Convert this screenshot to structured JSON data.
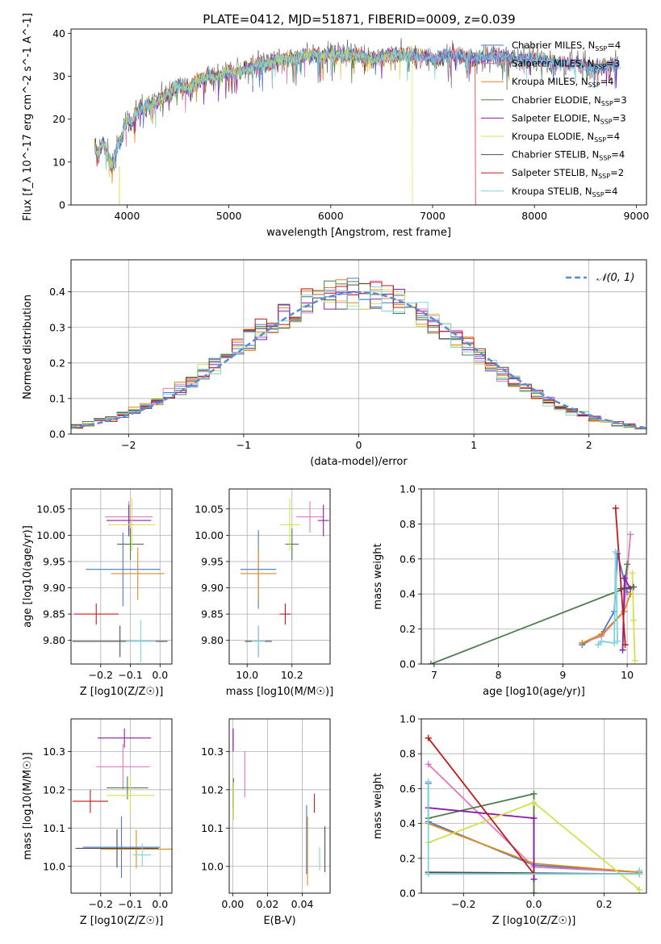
{
  "figure": {
    "title": "PLATE=0412, MJD=51871, FIBERID=0009, z=0.039",
    "series_colors": {
      "chabrier_miles": "#4878cf",
      "salpeter_miles": "#e377c2",
      "kroupa_miles": "#d98c1c",
      "chabrier_elodie": "#4c7f4c",
      "salpeter_elodie": "#8c1ca8",
      "kroupa_elodie": "#d4e04c",
      "chabrier_stelib": "#4d4d4d",
      "salpeter_stelib": "#c41a1a",
      "kroupa_stelib": "#7fd3de"
    }
  },
  "chart_data": [
    {
      "type": "line",
      "id": "spectrum",
      "title": "PLATE=0412, MJD=51871, FIBERID=0009, z=0.039",
      "xlabel": "wavelength [Angstrom, rest frame]",
      "ylabel": "Flux [f_λ 10^-17 erg cm^-2 s^-1 A^-1]",
      "xlim": [
        3450,
        9100
      ],
      "ylim": [
        0,
        41
      ],
      "xticks": [
        4000,
        5000,
        6000,
        7000,
        8000,
        9000
      ],
      "yticks": [
        0,
        10,
        20,
        30,
        40
      ],
      "grid": false,
      "legend_position": "top-right",
      "spectrum_x": [
        3680,
        3720,
        3760,
        3800,
        3850,
        3900,
        3950,
        4000,
        4050,
        4100,
        4200,
        4300,
        4400,
        4500,
        4600,
        4700,
        4800,
        4900,
        5000,
        5100,
        5200,
        5300,
        5400,
        5500,
        5600,
        5800,
        6000,
        6200,
        6400,
        6600,
        6800,
        7000,
        7200,
        7400,
        7600,
        7800,
        8000,
        8200,
        8400,
        8600,
        8800
      ],
      "spectrum_y": [
        14,
        11,
        15,
        12,
        9,
        13,
        16,
        20,
        19,
        22,
        23,
        24,
        26,
        28,
        27,
        29,
        30,
        30,
        31,
        31,
        32,
        33,
        33,
        34,
        34,
        35,
        35,
        35,
        34,
        35,
        35,
        34,
        35,
        34,
        35,
        34,
        34,
        33,
        33,
        32,
        33
      ],
      "drops": [
        {
          "series": "Kroupa ELODIE",
          "x": 3920,
          "direction": "left"
        },
        {
          "series": "Kroupa ELODIE",
          "x": 6800,
          "direction": "right"
        },
        {
          "series": "Salpeter STELIB",
          "x": 7420,
          "direction": "right"
        }
      ],
      "legend": [
        {
          "label": "Chabrier MILES, N",
          "sub": "SSP",
          "tail": "=4",
          "color_key": "chabrier_miles"
        },
        {
          "label": "Salpeter MILES, N",
          "sub": "SSP",
          "tail": "=3",
          "color_key": "salpeter_miles"
        },
        {
          "label": "Kroupa MILES, N",
          "sub": "SSP",
          "tail": "=4",
          "color_key": "kroupa_miles"
        },
        {
          "label": "Chabrier ELODIE, N",
          "sub": "SSP",
          "tail": "=3",
          "color_key": "chabrier_elodie"
        },
        {
          "label": "Salpeter ELODIE, N",
          "sub": "SSP",
          "tail": "=3",
          "color_key": "salpeter_elodie"
        },
        {
          "label": "Kroupa ELODIE, N",
          "sub": "SSP",
          "tail": "=4",
          "color_key": "kroupa_elodie"
        },
        {
          "label": "Chabrier STELIB, N",
          "sub": "SSP",
          "tail": "=4",
          "color_key": "chabrier_stelib"
        },
        {
          "label": "Salpeter STELIB, N",
          "sub": "SSP",
          "tail": "=2",
          "color_key": "salpeter_stelib"
        },
        {
          "label": "Kroupa STELIB, N",
          "sub": "SSP",
          "tail": "=4",
          "color_key": "kroupa_stelib"
        }
      ]
    },
    {
      "type": "histogram",
      "id": "residuals",
      "xlabel": "(data-model)/error",
      "ylabel": "Normed distribution",
      "xlim": [
        -2.5,
        2.5
      ],
      "ylim": [
        0,
        0.49
      ],
      "xticks": [
        -2,
        -1,
        0,
        1,
        2
      ],
      "yticks": [
        0.0,
        0.1,
        0.2,
        0.3,
        0.4
      ],
      "grid": true,
      "legend_position": "top-right",
      "legend_label": "𝒩(0, 1)",
      "reference_curve": "normal(0,1)",
      "reference_color": "#5b8bd0",
      "bin_width": 0.1
    },
    {
      "type": "errorbar",
      "id": "age_vs_z",
      "xlabel": "Z [log10(Z/Z☉)]",
      "ylabel": "age  [log10(age/yr)]",
      "xlim": [
        -0.3,
        0.04
      ],
      "ylim": [
        9.755,
        10.088
      ],
      "xticks": [
        -0.2,
        -0.1,
        0.0
      ],
      "yticks": [
        9.8,
        9.85,
        9.9,
        9.95,
        10.0,
        10.05
      ],
      "grid": true,
      "points": [
        {
          "color_key": "chabrier_miles",
          "x": -0.125,
          "xerr": 0.125,
          "y": 9.935,
          "yerr": 0.07
        },
        {
          "color_key": "salpeter_miles",
          "x": -0.105,
          "xerr": 0.08,
          "y": 10.035,
          "yerr": 0.03
        },
        {
          "color_key": "kroupa_miles",
          "x": -0.075,
          "xerr": 0.09,
          "y": 9.927,
          "yerr": 0.05
        },
        {
          "color_key": "chabrier_elodie",
          "x": -0.1,
          "xerr": 0.045,
          "y": 9.983,
          "yerr": 0.03
        },
        {
          "color_key": "salpeter_elodie",
          "x": -0.105,
          "xerr": 0.075,
          "y": 10.028,
          "yerr": 0.03
        },
        {
          "color_key": "kroupa_elodie",
          "x": -0.095,
          "xerr": 0.08,
          "y": 10.02,
          "yerr": 0.05
        },
        {
          "color_key": "chabrier_stelib",
          "x": -0.135,
          "xerr": 0.16,
          "y": 9.798,
          "yerr": 0.03
        },
        {
          "color_key": "salpeter_stelib",
          "x": -0.215,
          "xerr": 0.075,
          "y": 9.85,
          "yerr": 0.02
        },
        {
          "color_key": "kroupa_stelib",
          "x": -0.065,
          "xerr": 0.05,
          "y": 9.798,
          "yerr": 0.04
        }
      ]
    },
    {
      "type": "errorbar",
      "id": "age_vs_mass",
      "xlabel": "mass [log10(M/M☉)]",
      "ylabel": "",
      "xlim": [
        9.92,
        10.37
      ],
      "ylim": [
        9.755,
        10.088
      ],
      "xticks": [
        10.0,
        10.2
      ],
      "yticks": [
        9.8,
        9.85,
        9.9,
        9.95,
        10.0,
        10.05
      ],
      "grid": true,
      "points": [
        {
          "color_key": "chabrier_miles",
          "x": 10.05,
          "xerr": 0.08,
          "y": 9.935,
          "yerr": 0.075
        },
        {
          "color_key": "salpeter_miles",
          "x": 10.28,
          "xerr": 0.06,
          "y": 10.035,
          "yerr": 0.03
        },
        {
          "color_key": "kroupa_miles",
          "x": 10.05,
          "xerr": 0.08,
          "y": 9.927,
          "yerr": 0.05
        },
        {
          "color_key": "chabrier_elodie",
          "x": 10.2,
          "xerr": 0.03,
          "y": 9.983,
          "yerr": 0.03
        },
        {
          "color_key": "salpeter_elodie",
          "x": 10.34,
          "xerr": 0.025,
          "y": 10.028,
          "yerr": 0.03
        },
        {
          "color_key": "kroupa_elodie",
          "x": 10.19,
          "xerr": 0.045,
          "y": 10.02,
          "yerr": 0.05
        },
        {
          "color_key": "chabrier_stelib",
          "x": 10.05,
          "xerr": 0.06,
          "y": 9.798,
          "yerr": 0.03
        },
        {
          "color_key": "salpeter_stelib",
          "x": 10.17,
          "xerr": 0.025,
          "y": 9.85,
          "yerr": 0.02
        },
        {
          "color_key": "kroupa_stelib",
          "x": 10.05,
          "xerr": 0.03,
          "y": 9.798,
          "yerr": 0.03
        }
      ]
    },
    {
      "type": "line",
      "id": "weight_vs_age",
      "xlabel": "age  [log10(age/yr)]",
      "ylabel": "mass weight",
      "xlim": [
        6.8,
        10.3
      ],
      "ylim": [
        0.0,
        1.0
      ],
      "xticks": [
        7,
        8,
        9,
        10
      ],
      "yticks": [
        0.0,
        0.2,
        0.4,
        0.6,
        0.8,
        1.0
      ],
      "grid": true,
      "series": [
        {
          "color_key": "chabrier_miles",
          "x": [
            9.3,
            9.6,
            9.8,
            9.85,
            10.0
          ],
          "y": [
            0.11,
            0.17,
            0.3,
            0.63,
            0.41
          ]
        },
        {
          "color_key": "salpeter_miles",
          "x": [
            9.3,
            9.6,
            9.95,
            10.05
          ],
          "y": [
            0.12,
            0.16,
            0.3,
            0.74
          ]
        },
        {
          "color_key": "kroupa_miles",
          "x": [
            9.3,
            9.6,
            9.95,
            10.05
          ],
          "y": [
            0.12,
            0.17,
            0.3,
            0.4
          ]
        },
        {
          "color_key": "chabrier_elodie",
          "x": [
            6.95,
            9.95,
            10.0
          ],
          "y": [
            0.0,
            0.43,
            0.57
          ]
        },
        {
          "color_key": "salpeter_elodie",
          "x": [
            9.93,
            9.96,
            10.05
          ],
          "y": [
            0.08,
            0.49,
            0.43
          ]
        },
        {
          "color_key": "kroupa_elodie",
          "x": [
            10.08,
            10.1,
            10.12
          ],
          "y": [
            0.52,
            0.25,
            0.02
          ]
        },
        {
          "color_key": "chabrier_stelib",
          "x": [
            9.9,
            10.1
          ],
          "y": [
            0.43,
            0.44
          ]
        },
        {
          "color_key": "salpeter_stelib",
          "x": [
            9.82,
            9.97
          ],
          "y": [
            0.89,
            0.11
          ]
        },
        {
          "color_key": "kroupa_stelib",
          "x": [
            9.55,
            9.6,
            9.8,
            9.82,
            9.85
          ],
          "y": [
            0.11,
            0.13,
            0.12,
            0.64,
            0.13
          ]
        }
      ]
    },
    {
      "type": "errorbar",
      "id": "mass_vs_z",
      "xlabel": "Z [log10(Z/Z☉)]",
      "ylabel": "mass [log10(M/M☉)]",
      "xlim": [
        -0.3,
        0.04
      ],
      "ylim": [
        9.93,
        10.385
      ],
      "xticks": [
        -0.2,
        -0.1,
        0.0
      ],
      "yticks": [
        10.0,
        10.1,
        10.2,
        10.3
      ],
      "grid": true,
      "points": [
        {
          "color_key": "chabrier_miles",
          "x": -0.13,
          "xerr": 0.13,
          "y": 10.05,
          "yerr": 0.08
        },
        {
          "color_key": "salpeter_miles",
          "x": -0.125,
          "xerr": 0.09,
          "y": 10.26,
          "yerr": 0.06
        },
        {
          "color_key": "kroupa_miles",
          "x": -0.08,
          "xerr": 0.12,
          "y": 10.045,
          "yerr": 0.05
        },
        {
          "color_key": "chabrier_elodie",
          "x": -0.11,
          "xerr": 0.07,
          "y": 10.205,
          "yerr": 0.03
        },
        {
          "color_key": "salpeter_elodie",
          "x": -0.12,
          "xerr": 0.09,
          "y": 10.335,
          "yerr": 0.025
        },
        {
          "color_key": "kroupa_elodie",
          "x": -0.1,
          "xerr": 0.08,
          "y": 10.185,
          "yerr": 0.045
        },
        {
          "color_key": "chabrier_stelib",
          "x": -0.145,
          "xerr": 0.14,
          "y": 10.047,
          "yerr": 0.05
        },
        {
          "color_key": "salpeter_stelib",
          "x": -0.235,
          "xerr": 0.06,
          "y": 10.17,
          "yerr": 0.03
        },
        {
          "color_key": "kroupa_stelib",
          "x": -0.06,
          "xerr": 0.03,
          "y": 10.03,
          "yerr": 0.03
        }
      ]
    },
    {
      "type": "errorbar",
      "id": "mass_vs_ebv",
      "xlabel": "E(B-V)",
      "ylabel": "",
      "xlim": [
        -0.002,
        0.056
      ],
      "ylim": [
        9.93,
        10.385
      ],
      "xticks": [
        0.0,
        0.02,
        0.04
      ],
      "yticks": [
        10.0,
        10.1,
        10.2,
        10.3
      ],
      "grid": true,
      "points": [
        {
          "color_key": "chabrier_miles",
          "x": 0.0425,
          "xerr": 0,
          "y": 10.07,
          "yerr": 0.09
        },
        {
          "color_key": "salpeter_miles",
          "x": 0.007,
          "xerr": 0,
          "y": 10.24,
          "yerr": 0.06
        },
        {
          "color_key": "kroupa_miles",
          "x": 0.043,
          "xerr": 0,
          "y": 10.04,
          "yerr": 0.09
        },
        {
          "color_key": "chabrier_elodie",
          "x": 0.0005,
          "xerr": 0,
          "y": 10.19,
          "yerr": 0.04
        },
        {
          "color_key": "salpeter_elodie",
          "x": 0.0003,
          "xerr": 0,
          "y": 10.33,
          "yerr": 0.03
        },
        {
          "color_key": "kroupa_elodie",
          "x": 0.0005,
          "xerr": 0,
          "y": 10.17,
          "yerr": 0.05
        },
        {
          "color_key": "chabrier_stelib",
          "x": 0.053,
          "xerr": 0,
          "y": 10.045,
          "yerr": 0.06
        },
        {
          "color_key": "salpeter_stelib",
          "x": 0.047,
          "xerr": 0,
          "y": 10.165,
          "yerr": 0.025
        },
        {
          "color_key": "kroupa_stelib",
          "x": 0.05,
          "xerr": 0,
          "y": 10.02,
          "yerr": 0.03
        }
      ]
    },
    {
      "type": "line",
      "id": "weight_vs_z",
      "xlabel": "Z [log10(Z/Z☉)]",
      "ylabel": "mass weight",
      "xlim": [
        -0.32,
        0.32
      ],
      "ylim": [
        0.0,
        1.0
      ],
      "xticks": [
        -0.2,
        0.0,
        0.2
      ],
      "yticks": [
        0.0,
        0.2,
        0.4,
        0.6,
        0.8,
        1.0
      ],
      "grid": true,
      "series": [
        {
          "color_key": "chabrier_miles",
          "x": [
            -0.3,
            -0.3,
            0.0,
            0.3
          ],
          "y": [
            0.63,
            0.41,
            0.16,
            0.12
          ]
        },
        {
          "color_key": "salpeter_miles",
          "x": [
            -0.3,
            0.0,
            0.3
          ],
          "y": [
            0.74,
            0.15,
            0.12
          ]
        },
        {
          "color_key": "kroupa_miles",
          "x": [
            -0.3,
            0.0,
            0.3
          ],
          "y": [
            0.4,
            0.17,
            0.12
          ]
        },
        {
          "color_key": "chabrier_elodie",
          "x": [
            -0.3,
            0.0,
            0.0
          ],
          "y": [
            0.43,
            0.57,
            0.0
          ]
        },
        {
          "color_key": "salpeter_elodie",
          "x": [
            -0.3,
            0.0,
            0.0
          ],
          "y": [
            0.49,
            0.43,
            0.08
          ]
        },
        {
          "color_key": "kroupa_elodie",
          "x": [
            -0.3,
            0.0,
            0.3
          ],
          "y": [
            0.29,
            0.52,
            0.02
          ]
        },
        {
          "color_key": "chabrier_stelib",
          "x": [
            -0.3,
            0.3
          ],
          "y": [
            0.12,
            0.11
          ]
        },
        {
          "color_key": "salpeter_stelib",
          "x": [
            -0.3,
            0.0
          ],
          "y": [
            0.89,
            0.11
          ]
        },
        {
          "color_key": "kroupa_stelib",
          "x": [
            -0.3,
            -0.3,
            0.3,
            0.3
          ],
          "y": [
            0.64,
            0.11,
            0.11,
            0.13
          ]
        }
      ]
    }
  ]
}
